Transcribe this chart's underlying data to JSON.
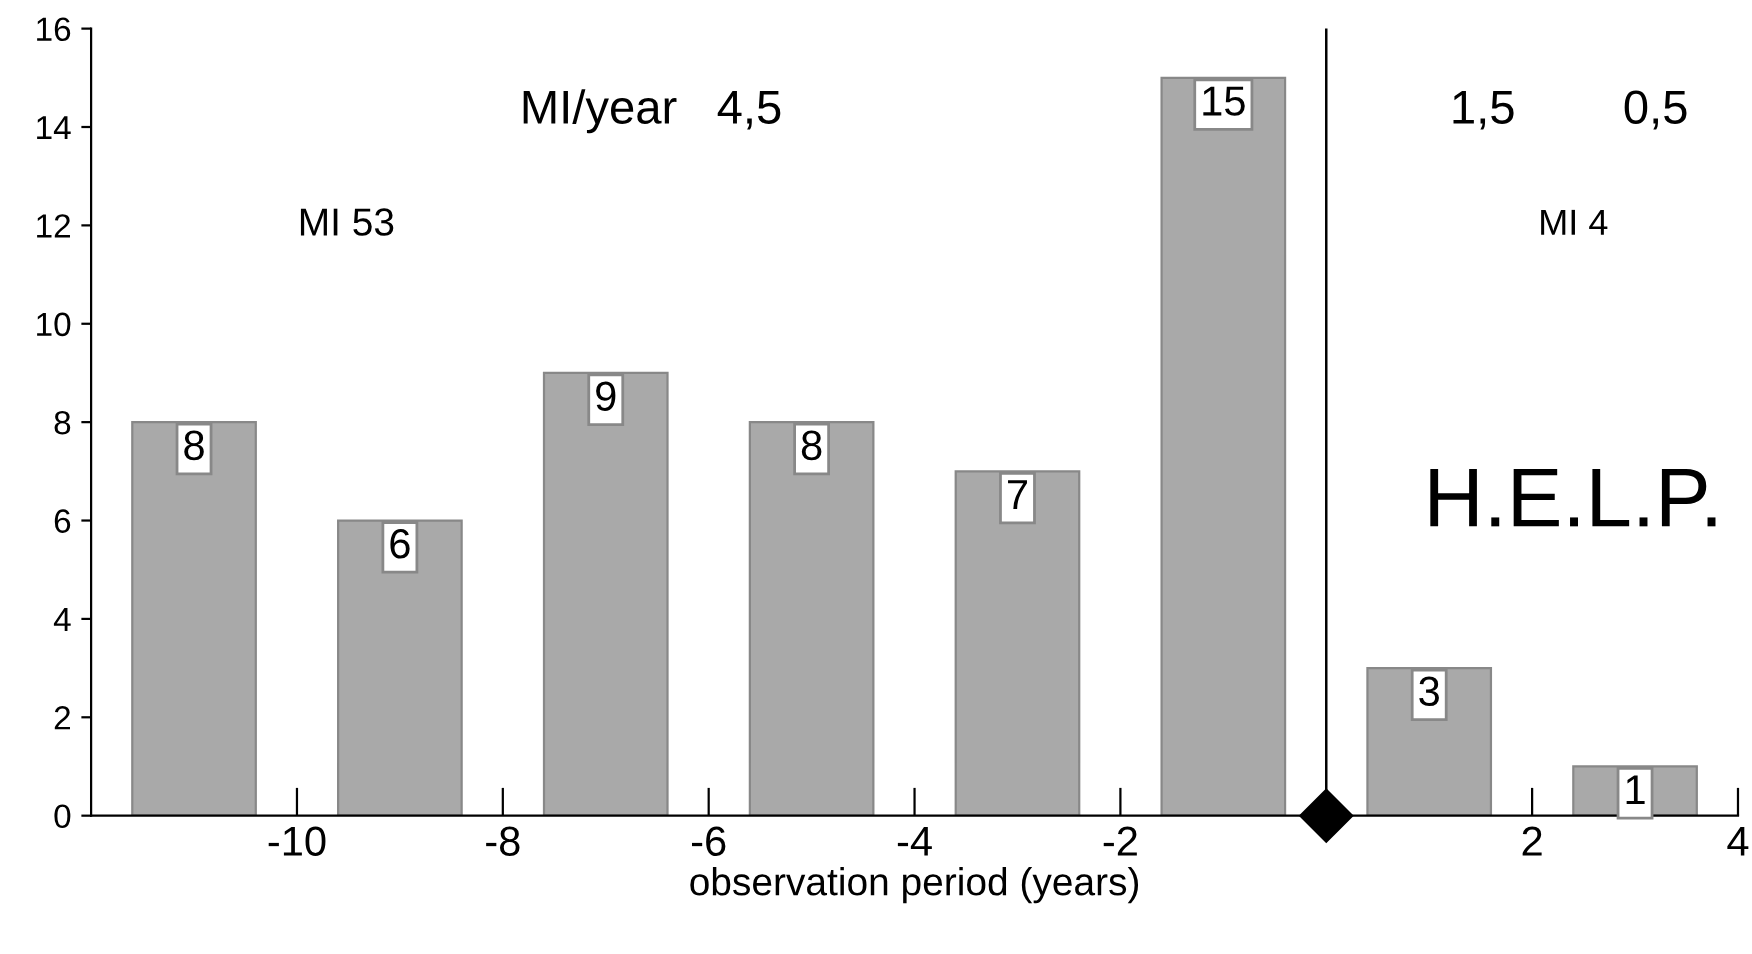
{
  "chart_data": {
    "type": "bar",
    "xlabel": "observation period (years)",
    "x": [
      -11,
      -9,
      -7,
      -5,
      -3,
      -1,
      1,
      3
    ],
    "values": [
      8,
      6,
      9,
      8,
      7,
      15,
      3,
      1
    ],
    "color": "#a9a9a9",
    "data_labels": true,
    "xlim": [
      -12,
      4
    ],
    "xticks": [
      -10,
      -8,
      -6,
      -4,
      -2,
      2,
      4
    ],
    "ylim": [
      0,
      16
    ],
    "yticks": [
      0,
      2,
      4,
      6,
      8,
      10,
      12,
      14,
      16
    ],
    "grid": false,
    "legend": false,
    "ref_lines": [
      {
        "axis": "x",
        "value": 0,
        "color": "#000000"
      }
    ],
    "annotations": [
      "MI/year   4,5",
      "1,5",
      "0,5",
      "MI 53",
      "MI 4",
      "H.E.L.P."
    ]
  }
}
